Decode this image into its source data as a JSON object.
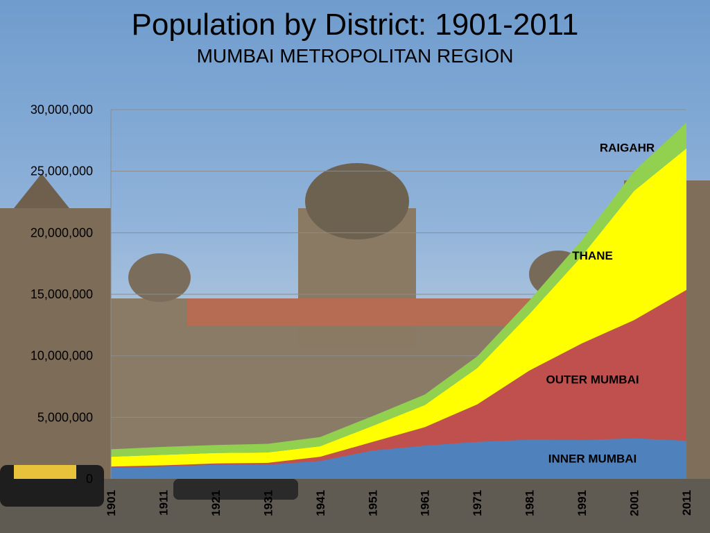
{
  "title": "Population by District: 1901-2011",
  "subtitle": "MUMBAI METROPOLITAN REGION",
  "chart_data": {
    "type": "area",
    "stacked": true,
    "title": "Population by District: 1901-2011",
    "subtitle": "MUMBAI METROPOLITAN REGION",
    "x": [
      "1901",
      "1911",
      "1921",
      "1931",
      "1941",
      "1951",
      "1961",
      "1971",
      "1981",
      "1991",
      "2001",
      "2011"
    ],
    "yticks": [
      "0",
      "5,000,000",
      "10,000,000",
      "15,000,000",
      "20,000,000",
      "25,000,000",
      "30,000,000"
    ],
    "ylim": [
      0,
      30000000
    ],
    "grid": true,
    "legend": "labels inside areas",
    "series": [
      {
        "name": "INNER MUMBAI",
        "color": "#4f81bd",
        "values": [
          900000,
          1000000,
          1150000,
          1150000,
          1450000,
          2300000,
          2700000,
          3000000,
          3200000,
          3150000,
          3300000,
          3100000
        ]
      },
      {
        "name": "OUTER MUMBAI",
        "color": "#c0504d",
        "values": [
          100000,
          100000,
          100000,
          150000,
          350000,
          700000,
          1500000,
          3050000,
          5600000,
          7850000,
          9600000,
          12250000
        ]
      },
      {
        "name": "THANE",
        "color": "#ffff00",
        "values": [
          800000,
          850000,
          850000,
          850000,
          850000,
          1300000,
          1800000,
          2950000,
          4600000,
          7100000,
          10500000,
          11500000
        ]
      },
      {
        "name": "RAIGAHR",
        "color": "#92d050",
        "values": [
          600000,
          650000,
          650000,
          700000,
          750000,
          800000,
          850000,
          950000,
          1100000,
          1300000,
          1600000,
          2100000
        ]
      }
    ]
  }
}
